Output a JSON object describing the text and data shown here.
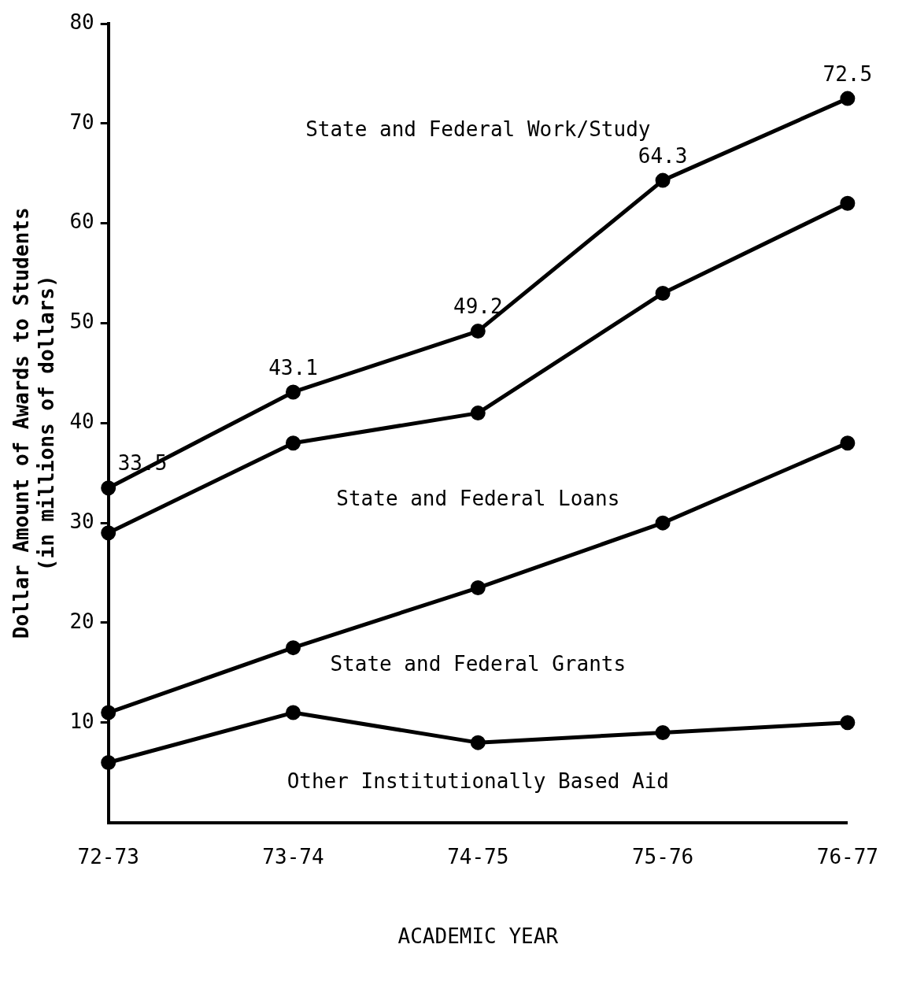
{
  "chart_data": {
    "type": "line",
    "xlabel": "ACADEMIC YEAR",
    "ylabel": "Dollar Amount of Awards to Students\n(in millions of dollars)",
    "categories": [
      "72-73",
      "73-74",
      "74-75",
      "75-76",
      "76-77"
    ],
    "series": [
      {
        "color": "#000000",
        "values": [
          33.5,
          43.1,
          49.2,
          64.3,
          72.5
        ],
        "value_labels": [
          "33.5",
          "43.1",
          "49.2",
          "64.3",
          "72.5"
        ]
      },
      {
        "color": "#000000",
        "values": [
          29,
          38,
          41,
          53,
          62
        ]
      },
      {
        "color": "#000000",
        "values": [
          11,
          17.5,
          23.5,
          30,
          38
        ]
      },
      {
        "color": "#000000",
        "values": [
          6,
          11,
          8,
          9,
          10
        ]
      }
    ],
    "annotations": [
      "State and Federal Work/Study",
      "State and Federal Loans",
      "State and Federal Grants",
      "Other Institutionally Based Aid"
    ],
    "ylim": [
      0,
      80
    ],
    "yticks": [
      10,
      20,
      30,
      40,
      50,
      60,
      70,
      80
    ],
    "grid": false,
    "legend": false,
    "marker": "circle",
    "line_style": "solid"
  }
}
